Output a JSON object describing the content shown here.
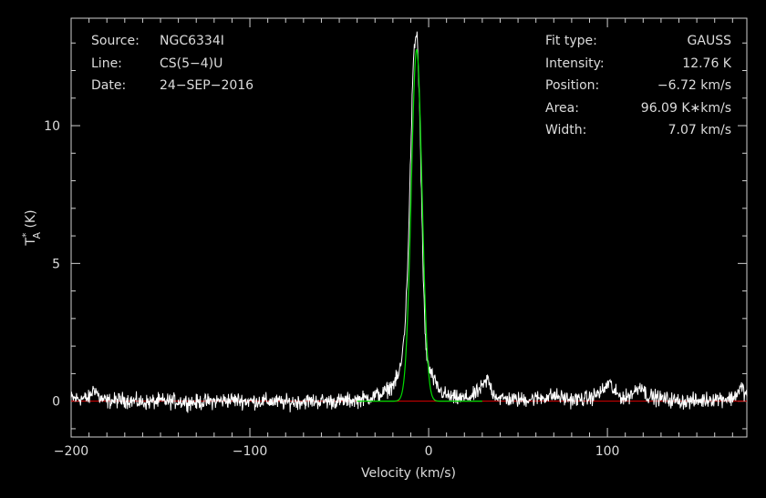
{
  "info_left": [
    {
      "key": "Source:",
      "value": "NGC6334I"
    },
    {
      "key": "Line:",
      "value": "CS(5−4)U"
    },
    {
      "key": "Date:",
      "value": "24−SEP−2016"
    }
  ],
  "info_right": [
    {
      "key": "Fit type:",
      "value": "GAUSS"
    },
    {
      "key": "Intensity:",
      "value": "12.76 K"
    },
    {
      "key": "Position:",
      "value": "−6.72 km/s"
    },
    {
      "key": "Area:",
      "value": "96.09 K∗km/s"
    },
    {
      "key": "Width:",
      "value": "7.07 km/s"
    }
  ],
  "chart_data": {
    "type": "line",
    "xlabel": "Velocity (km/s)",
    "ylabel_main": "T",
    "ylabel_sup": "*",
    "ylabel_sub": "A",
    "ylabel_unit": " (K)",
    "xlim": [
      -200,
      178
    ],
    "ylim": [
      -1.3,
      13.9
    ],
    "x_ticks": [
      -200,
      -100,
      0,
      100
    ],
    "x_tick_labels": [
      "−200",
      "−100",
      "0",
      "100"
    ],
    "y_ticks": [
      0,
      5,
      10
    ],
    "y_tick_labels": [
      "0",
      "5",
      "10"
    ],
    "grid": false,
    "series": [
      {
        "kind": "observed spectrum",
        "color": "#ffffff",
        "x": [
          -200,
          -190,
          -187,
          -184,
          -180,
          -170,
          -160,
          -150,
          -140,
          -130,
          -120,
          -110,
          -100,
          -90,
          -80,
          -70,
          -60,
          -50,
          -40,
          -35,
          -30,
          -25,
          -20,
          -17,
          -15,
          -13,
          -12,
          -11,
          -10,
          -9,
          -8,
          -7,
          -6.5,
          -6,
          -5,
          -4,
          -3,
          -2,
          -1,
          0,
          2,
          4,
          6,
          8,
          10,
          15,
          20,
          25,
          30,
          33,
          36,
          40,
          50,
          60,
          70,
          80,
          90,
          98,
          101,
          104,
          110,
          116,
          119,
          122,
          130,
          140,
          150,
          160,
          170,
          175,
          178
        ],
        "y": [
          0.1,
          0.1,
          0.5,
          0.1,
          0.0,
          0.05,
          -0.05,
          0.0,
          0.0,
          -0.05,
          0.0,
          0.05,
          0.0,
          0.0,
          -0.05,
          0.0,
          0.0,
          0.0,
          0.05,
          0.1,
          0.2,
          0.3,
          0.6,
          0.9,
          1.5,
          3.0,
          4.5,
          6.5,
          9.0,
          11.5,
          12.8,
          13.3,
          13.3,
          12.6,
          10.5,
          7.5,
          4.5,
          2.5,
          1.6,
          1.2,
          0.9,
          0.6,
          0.4,
          0.3,
          0.2,
          0.1,
          0.1,
          0.2,
          0.5,
          0.8,
          0.3,
          0.1,
          0.05,
          0.1,
          0.2,
          0.05,
          0.1,
          0.4,
          0.7,
          0.3,
          0.1,
          0.4,
          0.6,
          0.2,
          0.1,
          0.0,
          0.0,
          0.1,
          0.1,
          0.5,
          0.2
        ]
      },
      {
        "kind": "gaussian fit",
        "color": "#00dd00",
        "amplitude": 12.76,
        "center": -6.72,
        "fwhm": 7.07
      },
      {
        "kind": "baseline",
        "color": "#dd0000",
        "y": 0
      }
    ]
  }
}
